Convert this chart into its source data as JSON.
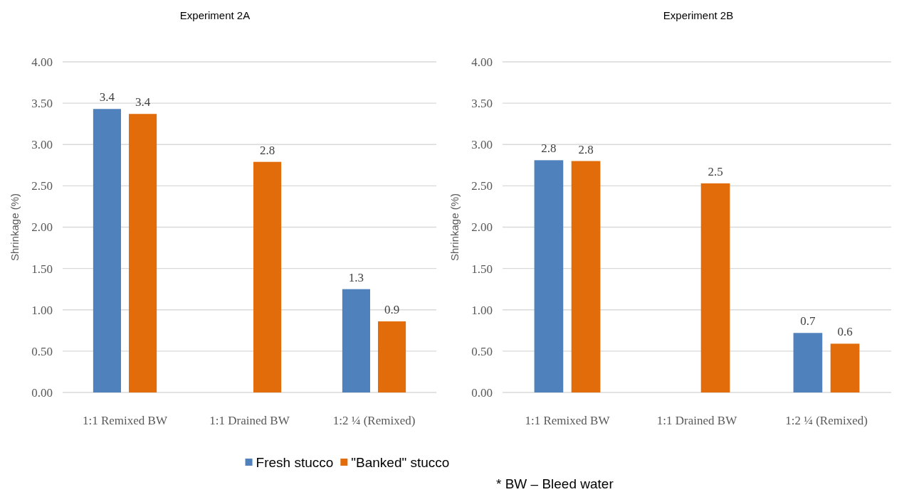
{
  "chart_data": [
    {
      "type": "bar",
      "title": "Experiment 2A",
      "ylabel": "Shrinkage (%)",
      "categories": [
        "1:1 Remixed BW",
        "1:1 Drained BW",
        "1:2 ¼ (Remixed)"
      ],
      "series": [
        {
          "name": "Fresh stucco",
          "color": "#4f81bd",
          "values": [
            3.43,
            null,
            1.25
          ],
          "value_labels": [
            "3.4",
            null,
            "1.3"
          ]
        },
        {
          "name": "\"Banked\" stucco",
          "color": "#e36c0a",
          "values": [
            3.37,
            2.79,
            0.86
          ],
          "value_labels": [
            "3.4",
            "2.8",
            "0.9"
          ]
        }
      ],
      "ylim": [
        0,
        4
      ],
      "yticks": [
        {
          "value": 0,
          "label": "0.00"
        },
        {
          "value": 0.5,
          "label": "0.50"
        },
        {
          "value": 1,
          "label": "1.00"
        },
        {
          "value": 1.5,
          "label": "1.50"
        },
        {
          "value": 2,
          "label": "2.00"
        },
        {
          "value": 2.5,
          "label": "2.50"
        },
        {
          "value": 3,
          "label": "3.00"
        },
        {
          "value": 3.5,
          "label": "3.50"
        },
        {
          "value": 4,
          "label": "4.00"
        }
      ],
      "grid": "y",
      "legend": "bottom"
    },
    {
      "type": "bar",
      "title": "Experiment 2B",
      "ylabel": "Shrinkage (%)",
      "categories": [
        "1:1 Remixed BW",
        "1:1 Drained BW",
        "1:2 ¼ (Remixed)"
      ],
      "series": [
        {
          "color": "#4f81bd",
          "values": [
            2.81,
            null,
            0.72
          ],
          "value_labels": [
            "2.8",
            null,
            "0.7"
          ]
        },
        {
          "color": "#e36c0a",
          "values": [
            2.8,
            2.53,
            0.59
          ],
          "value_labels": [
            "2.8",
            "2.5",
            "0.6"
          ]
        }
      ],
      "ylim": [
        0,
        4
      ],
      "yticks": [
        {
          "value": 0,
          "label": "0.00"
        },
        {
          "value": 0.5,
          "label": "0.50"
        },
        {
          "value": 1,
          "label": "1.00"
        },
        {
          "value": 1.5,
          "label": "1.50"
        },
        {
          "value": 2,
          "label": "2.00"
        },
        {
          "value": 2.5,
          "label": "2.50"
        },
        {
          "value": 3,
          "label": "3.00"
        },
        {
          "value": 3.5,
          "label": "3.50"
        },
        {
          "value": 4,
          "label": "4.00"
        }
      ],
      "grid": "y",
      "annotations": [
        "* BW – Bleed water"
      ]
    }
  ]
}
